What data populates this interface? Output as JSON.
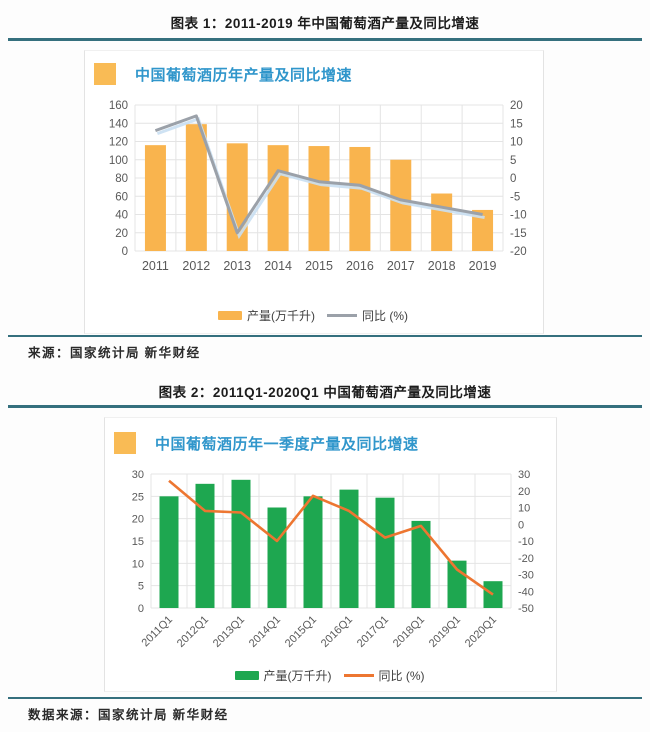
{
  "figure1": {
    "caption": "图表 1：2011-2019 年中国葡萄酒产量及同比增速",
    "source": "来源：国家统计局 新华财经"
  },
  "figure2": {
    "caption": "图表 2：2011Q1-2020Q1 中国葡萄酒产量及同比增速",
    "source": "数据来源：国家统计局 新华财经"
  },
  "colors": {
    "rule_teal": "#35707e",
    "title_blue": "#3096cb",
    "title_square_orange": "#f9bb55",
    "axis_text": "#595959",
    "grid_line": "#e4e4e4",
    "bar_orange": "#f9b44e",
    "line_gray": "#9ba1a9",
    "line_gray_shadow": "#c9dff2",
    "bar_green": "#1ea750",
    "line_orange": "#ed7631"
  },
  "chart_data": [
    {
      "type": "bar",
      "title": "中国葡萄酒历年产量及同比增速",
      "categories": [
        "2011",
        "2012",
        "2013",
        "2014",
        "2015",
        "2016",
        "2017",
        "2018",
        "2019"
      ],
      "series": [
        {
          "name": "产量(万千升)",
          "kind": "bar",
          "axis": "left",
          "color": "#f9b44e",
          "values": [
            116,
            139,
            118,
            116,
            115,
            114,
            100,
            63,
            45
          ]
        },
        {
          "name": "同比 (%)",
          "kind": "line",
          "axis": "right",
          "color": "#9ba1a9",
          "values": [
            13,
            17,
            -15,
            2,
            -1,
            -2,
            -6,
            -8,
            -10
          ]
        }
      ],
      "left_axis": {
        "min": 0,
        "max": 160,
        "step": 20,
        "label": "产量(万千升)"
      },
      "right_axis": {
        "min": -20,
        "max": 20,
        "step": 5,
        "label": "同比 (%)"
      },
      "grid": true,
      "legend_position": "bottom",
      "x_label_rotation": 0
    },
    {
      "type": "bar",
      "title": "中国葡萄酒历年一季度产量及同比增速",
      "categories": [
        "2011Q1",
        "2012Q1",
        "2013Q1",
        "2014Q1",
        "2015Q1",
        "2016Q1",
        "2017Q1",
        "2018Q1",
        "2019Q1",
        "2020Q1"
      ],
      "series": [
        {
          "name": "产量(万千升)",
          "kind": "bar",
          "axis": "left",
          "color": "#1ea750",
          "values": [
            25,
            27.8,
            28.7,
            22.5,
            25,
            26.5,
            24.7,
            19.5,
            10.6,
            6
          ]
        },
        {
          "name": "同比 (%)",
          "kind": "line",
          "axis": "right",
          "color": "#ed7631",
          "values": [
            26,
            8,
            7,
            -10,
            17,
            8,
            -8,
            -1,
            -27,
            -42
          ]
        }
      ],
      "left_axis": {
        "min": 0,
        "max": 30,
        "step": 5,
        "label": "产量(万千升)"
      },
      "right_axis": {
        "min": -50,
        "max": 30,
        "step": 10,
        "label": "同比 (%)"
      },
      "grid": true,
      "legend_position": "bottom",
      "x_label_rotation": -45
    }
  ]
}
